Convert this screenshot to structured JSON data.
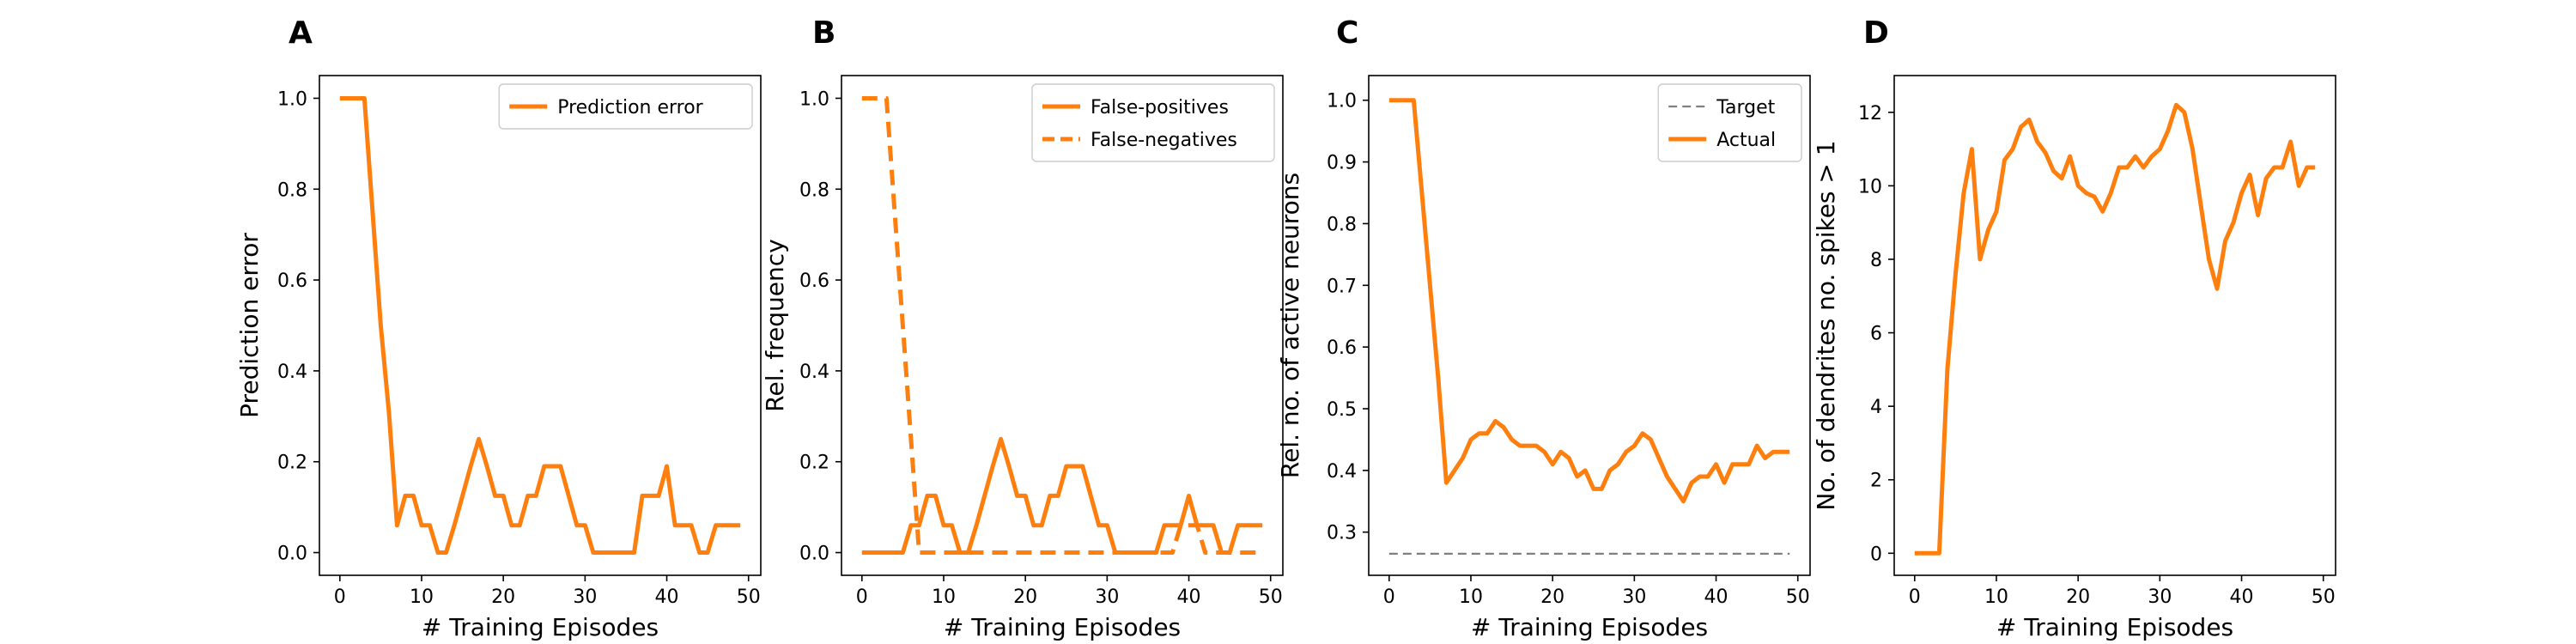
{
  "chart_data": [
    {
      "type": "line",
      "panel_label": "A",
      "xlabel": "# Training Episodes",
      "ylabel": "Prediction error",
      "xlim": [
        -2.5,
        51.5
      ],
      "ylim": [
        -0.05,
        1.05
      ],
      "xticks": [
        0,
        10,
        20,
        30,
        40,
        50
      ],
      "yticks": [
        0.0,
        0.2,
        0.4,
        0.6,
        0.8,
        1.0
      ],
      "ytick_labels": [
        "0.0",
        "0.2",
        "0.4",
        "0.6",
        "0.8",
        "1.0"
      ],
      "legend_position": "top-right",
      "series": [
        {
          "name": "Prediction error",
          "color": "#ff7f0e",
          "dash": "solid",
          "x": [
            0,
            1,
            2,
            3,
            4,
            5,
            6,
            7,
            8,
            9,
            10,
            11,
            12,
            13,
            14,
            15,
            16,
            17,
            18,
            19,
            20,
            21,
            22,
            23,
            24,
            25,
            26,
            27,
            28,
            29,
            30,
            31,
            32,
            33,
            34,
            35,
            36,
            37,
            38,
            39,
            40,
            41,
            42,
            43,
            44,
            45,
            46,
            47,
            48,
            49
          ],
          "y": [
            1.0,
            1.0,
            1.0,
            1.0,
            0.75,
            0.5,
            0.31,
            0.06,
            0.125,
            0.125,
            0.06,
            0.06,
            0.0,
            0.0,
            0.06,
            0.125,
            0.19,
            0.25,
            0.19,
            0.125,
            0.125,
            0.06,
            0.06,
            0.125,
            0.125,
            0.19,
            0.19,
            0.19,
            0.125,
            0.06,
            0.06,
            0.0,
            0.0,
            0.0,
            0.0,
            0.0,
            0.0,
            0.125,
            0.125,
            0.125,
            0.19,
            0.06,
            0.06,
            0.06,
            0.0,
            0.0,
            0.06,
            0.06,
            0.06,
            0.06
          ]
        }
      ]
    },
    {
      "type": "line",
      "panel_label": "B",
      "xlabel": "# Training Episodes",
      "ylabel": "Rel. frequency",
      "xlim": [
        -2.5,
        51.5
      ],
      "ylim": [
        -0.05,
        1.05
      ],
      "xticks": [
        0,
        10,
        20,
        30,
        40,
        50
      ],
      "yticks": [
        0.0,
        0.2,
        0.4,
        0.6,
        0.8,
        1.0
      ],
      "ytick_labels": [
        "0.0",
        "0.2",
        "0.4",
        "0.6",
        "0.8",
        "1.0"
      ],
      "legend_position": "top-right",
      "series": [
        {
          "name": "False-positives",
          "color": "#ff7f0e",
          "dash": "solid",
          "x": [
            0,
            1,
            2,
            3,
            4,
            5,
            6,
            7,
            8,
            9,
            10,
            11,
            12,
            13,
            14,
            15,
            16,
            17,
            18,
            19,
            20,
            21,
            22,
            23,
            24,
            25,
            26,
            27,
            28,
            29,
            30,
            31,
            32,
            33,
            34,
            35,
            36,
            37,
            38,
            39,
            40,
            41,
            42,
            43,
            44,
            45,
            46,
            47,
            48,
            49
          ],
          "y": [
            0.0,
            0.0,
            0.0,
            0.0,
            0.0,
            0.0,
            0.06,
            0.06,
            0.125,
            0.125,
            0.06,
            0.06,
            0.0,
            0.0,
            0.06,
            0.125,
            0.19,
            0.25,
            0.19,
            0.125,
            0.125,
            0.06,
            0.06,
            0.125,
            0.125,
            0.19,
            0.19,
            0.19,
            0.125,
            0.06,
            0.06,
            0.0,
            0.0,
            0.0,
            0.0,
            0.0,
            0.0,
            0.06,
            0.06,
            0.06,
            0.125,
            0.06,
            0.06,
            0.06,
            0.0,
            0.0,
            0.06,
            0.06,
            0.06,
            0.06
          ]
        },
        {
          "name": "False-negatives",
          "color": "#ff7f0e",
          "dash": "dashed",
          "x": [
            0,
            1,
            2,
            3,
            4,
            5,
            6,
            7,
            8,
            9,
            10,
            11,
            12,
            13,
            14,
            15,
            16,
            17,
            18,
            19,
            20,
            21,
            22,
            23,
            24,
            25,
            26,
            27,
            28,
            29,
            30,
            31,
            32,
            33,
            34,
            35,
            36,
            37,
            38,
            39,
            40,
            41,
            42,
            43,
            44,
            45,
            46,
            47,
            48,
            49
          ],
          "y": [
            1.0,
            1.0,
            1.0,
            1.0,
            0.75,
            0.5,
            0.25,
            0.0,
            0.0,
            0.0,
            0.0,
            0.0,
            0.0,
            0.0,
            0.0,
            0.0,
            0.0,
            0.0,
            0.0,
            0.0,
            0.0,
            0.0,
            0.0,
            0.0,
            0.0,
            0.0,
            0.0,
            0.0,
            0.0,
            0.0,
            0.0,
            0.0,
            0.0,
            0.0,
            0.0,
            0.0,
            0.0,
            0.0,
            0.0,
            0.06,
            0.06,
            0.06,
            0.0,
            0.0,
            0.0,
            0.0,
            0.0,
            0.0,
            0.0,
            0.0
          ]
        }
      ]
    },
    {
      "type": "line",
      "panel_label": "C",
      "xlabel": "# Training Episodes",
      "ylabel": "Rel. no. of active neurons",
      "xlim": [
        -2.5,
        51.5
      ],
      "ylim": [
        0.23,
        1.04
      ],
      "xticks": [
        0,
        10,
        20,
        30,
        40,
        50
      ],
      "yticks": [
        0.3,
        0.4,
        0.5,
        0.6,
        0.7,
        0.8,
        0.9,
        1.0
      ],
      "ytick_labels": [
        "0.3",
        "0.4",
        "0.5",
        "0.6",
        "0.7",
        "0.8",
        "0.9",
        "1.0"
      ],
      "legend_position": "top-right",
      "series": [
        {
          "name": "Target",
          "color": "#808080",
          "dash": "dashed",
          "x": [
            0,
            49
          ],
          "y": [
            0.265,
            0.265
          ]
        },
        {
          "name": "Actual",
          "color": "#ff7f0e",
          "dash": "solid",
          "x": [
            0,
            1,
            2,
            3,
            4,
            5,
            6,
            7,
            8,
            9,
            10,
            11,
            12,
            13,
            14,
            15,
            16,
            17,
            18,
            19,
            20,
            21,
            22,
            23,
            24,
            25,
            26,
            27,
            28,
            29,
            30,
            31,
            32,
            33,
            34,
            35,
            36,
            37,
            38,
            39,
            40,
            41,
            42,
            43,
            44,
            45,
            46,
            47,
            48,
            49
          ],
          "y": [
            1.0,
            1.0,
            1.0,
            1.0,
            0.85,
            0.7,
            0.55,
            0.38,
            0.4,
            0.42,
            0.45,
            0.46,
            0.46,
            0.48,
            0.47,
            0.45,
            0.44,
            0.44,
            0.44,
            0.43,
            0.41,
            0.43,
            0.42,
            0.39,
            0.4,
            0.37,
            0.37,
            0.4,
            0.41,
            0.43,
            0.44,
            0.46,
            0.45,
            0.42,
            0.39,
            0.37,
            0.35,
            0.38,
            0.39,
            0.39,
            0.41,
            0.38,
            0.41,
            0.41,
            0.41,
            0.44,
            0.42,
            0.43,
            0.43,
            0.43
          ]
        }
      ]
    },
    {
      "type": "line",
      "panel_label": "D",
      "xlabel": "# Training Episodes",
      "ylabel": "No. of dendrites no. spikes > 1",
      "xlim": [
        -2.5,
        51.5
      ],
      "ylim": [
        -0.6,
        13.0
      ],
      "xticks": [
        0,
        10,
        20,
        30,
        40,
        50
      ],
      "yticks": [
        0,
        2,
        4,
        6,
        8,
        10,
        12
      ],
      "ytick_labels": [
        "0",
        "2",
        "4",
        "6",
        "8",
        "10",
        "12"
      ],
      "series": [
        {
          "color": "#ff7f0e",
          "dash": "solid",
          "x": [
            0,
            1,
            2,
            3,
            4,
            5,
            6,
            7,
            8,
            9,
            10,
            11,
            12,
            13,
            14,
            15,
            16,
            17,
            18,
            19,
            20,
            21,
            22,
            23,
            24,
            25,
            26,
            27,
            28,
            29,
            30,
            31,
            32,
            33,
            34,
            35,
            36,
            37,
            38,
            39,
            40,
            41,
            42,
            43,
            44,
            45,
            46,
            47,
            48,
            49
          ],
          "y": [
            0,
            0,
            0,
            0,
            5,
            7.6,
            9.8,
            11.0,
            8.0,
            8.8,
            9.3,
            10.7,
            11.0,
            11.6,
            11.8,
            11.2,
            10.9,
            10.4,
            10.2,
            10.8,
            10.0,
            9.8,
            9.7,
            9.3,
            9.8,
            10.5,
            10.5,
            10.8,
            10.5,
            10.8,
            11.0,
            11.5,
            12.2,
            12.0,
            11.0,
            9.5,
            8.0,
            7.2,
            8.5,
            9.0,
            9.8,
            10.3,
            9.2,
            10.2,
            10.5,
            10.5,
            11.2,
            10.0,
            10.5,
            10.5
          ]
        }
      ]
    }
  ]
}
